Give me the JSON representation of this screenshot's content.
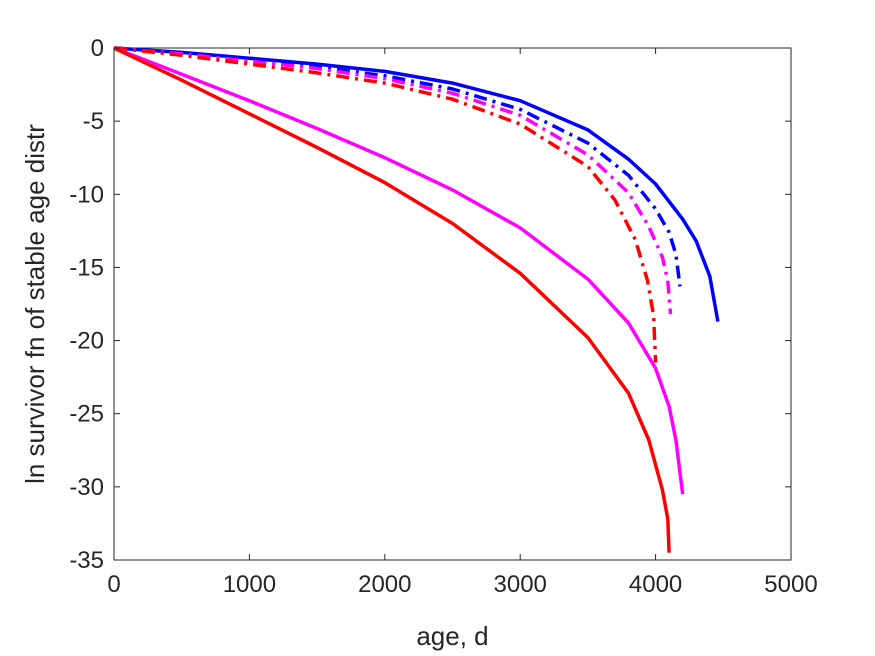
{
  "chart_data": {
    "type": "line",
    "title": "",
    "xlabel": "age, d",
    "ylabel": "ln survivor fn of stable age distr",
    "xlim": [
      0,
      5000
    ],
    "ylim": [
      -35,
      0
    ],
    "xticks": [
      "0",
      "1000",
      "2000",
      "3000",
      "4000",
      "5000"
    ],
    "yticks": [
      "0",
      "-5",
      "-10",
      "-15",
      "-20",
      "-25",
      "-30",
      "-35"
    ],
    "grid": false,
    "legend": "none",
    "series": [
      {
        "color": "#0000ff",
        "style": "solid",
        "points": [
          [
            0,
            0
          ],
          [
            500,
            -0.3
          ],
          [
            1000,
            -0.7
          ],
          [
            1500,
            -1.1
          ],
          [
            2000,
            -1.6
          ],
          [
            2500,
            -2.4
          ],
          [
            3000,
            -3.6
          ],
          [
            3500,
            -5.6
          ],
          [
            3800,
            -7.6
          ],
          [
            4000,
            -9.3
          ],
          [
            4200,
            -11.7
          ],
          [
            4300,
            -13.2
          ],
          [
            4400,
            -15.6
          ],
          [
            4460,
            -18.7
          ]
        ]
      },
      {
        "color": "#0000ff",
        "style": "dashdot",
        "points": [
          [
            0,
            0
          ],
          [
            500,
            -0.35
          ],
          [
            1000,
            -0.8
          ],
          [
            1500,
            -1.3
          ],
          [
            2000,
            -1.9
          ],
          [
            2500,
            -2.8
          ],
          [
            3000,
            -4.2
          ],
          [
            3500,
            -6.5
          ],
          [
            3800,
            -8.7
          ],
          [
            4000,
            -11.0
          ],
          [
            4100,
            -12.6
          ],
          [
            4150,
            -14.1
          ],
          [
            4180,
            -16.3
          ]
        ]
      },
      {
        "color": "#ff00ff",
        "style": "dashdot",
        "points": [
          [
            0,
            0
          ],
          [
            500,
            -0.4
          ],
          [
            1000,
            -0.9
          ],
          [
            1500,
            -1.4
          ],
          [
            2000,
            -2.1
          ],
          [
            2500,
            -3.1
          ],
          [
            3000,
            -4.6
          ],
          [
            3500,
            -7.3
          ],
          [
            3800,
            -9.9
          ],
          [
            3950,
            -12.2
          ],
          [
            4050,
            -14.3
          ],
          [
            4090,
            -15.9
          ],
          [
            4110,
            -18.2
          ]
        ]
      },
      {
        "color": "#ff0000",
        "style": "dashdot",
        "points": [
          [
            0,
            0
          ],
          [
            500,
            -0.5
          ],
          [
            1000,
            -1.1
          ],
          [
            1500,
            -1.7
          ],
          [
            2000,
            -2.4
          ],
          [
            2500,
            -3.5
          ],
          [
            3000,
            -5.2
          ],
          [
            3500,
            -8.1
          ],
          [
            3700,
            -10.4
          ],
          [
            3850,
            -13.1
          ],
          [
            3940,
            -15.9
          ],
          [
            3985,
            -18.3
          ],
          [
            4000,
            -21.5
          ]
        ]
      },
      {
        "color": "#ff00ff",
        "style": "solid",
        "points": [
          [
            0,
            0
          ],
          [
            500,
            -1.8
          ],
          [
            1000,
            -3.6
          ],
          [
            1500,
            -5.5
          ],
          [
            2000,
            -7.5
          ],
          [
            2500,
            -9.7
          ],
          [
            3000,
            -12.3
          ],
          [
            3500,
            -15.8
          ],
          [
            3800,
            -18.8
          ],
          [
            4000,
            -21.9
          ],
          [
            4100,
            -24.5
          ],
          [
            4150,
            -26.8
          ],
          [
            4200,
            -30.5
          ]
        ]
      },
      {
        "color": "#ff0000",
        "style": "solid",
        "points": [
          [
            0,
            0
          ],
          [
            500,
            -2.2
          ],
          [
            1000,
            -4.5
          ],
          [
            1500,
            -6.8
          ],
          [
            2000,
            -9.2
          ],
          [
            2500,
            -12.0
          ],
          [
            3000,
            -15.4
          ],
          [
            3500,
            -19.8
          ],
          [
            3800,
            -23.6
          ],
          [
            3950,
            -26.8
          ],
          [
            4050,
            -30.2
          ],
          [
            4090,
            -32.2
          ],
          [
            4100,
            -34.5
          ]
        ]
      }
    ]
  }
}
